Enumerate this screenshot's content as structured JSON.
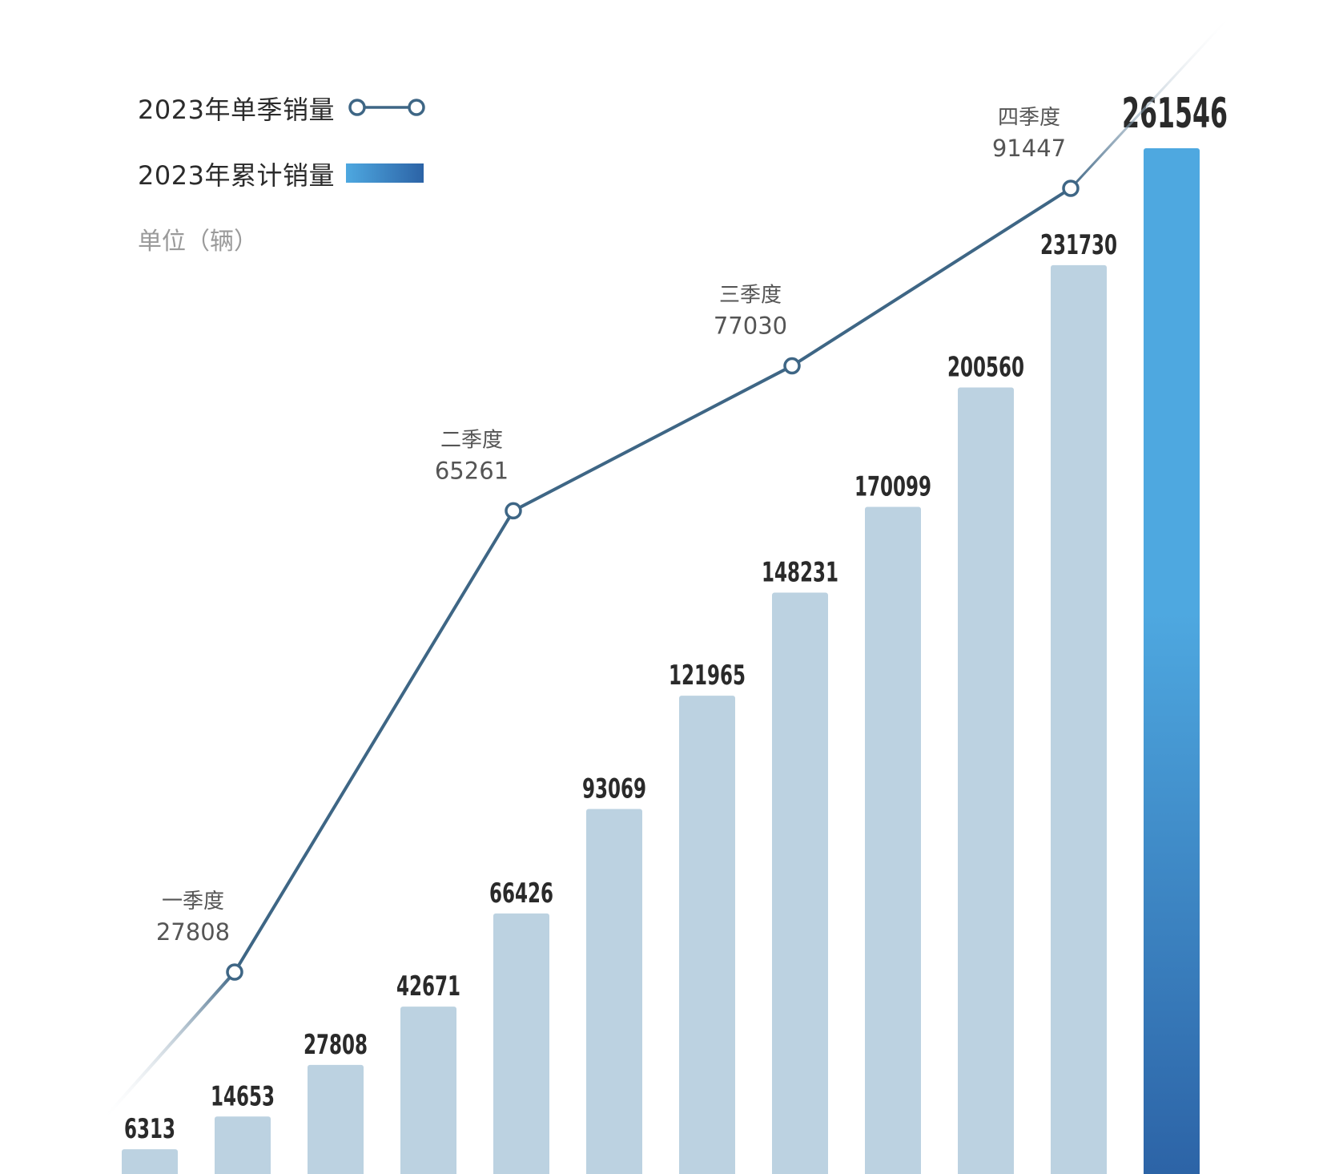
{
  "legend": {
    "quarterly_label": "2023年单季销量",
    "cumulative_label": "2023年累计销量",
    "unit": "单位（辆）"
  },
  "colors": {
    "bar": "#bcd2e1",
    "bar_highlight_top": "#4ea8e0",
    "bar_highlight_bottom": "#2c63a6",
    "line": "#3e6685",
    "value_label": "#2a2a2a",
    "quarter_label": "#555555"
  },
  "chart_data": {
    "type": "bar",
    "series": [
      {
        "name": "2023年累计销量",
        "type": "bar",
        "values": [
          6313,
          14653,
          27808,
          42671,
          66426,
          93069,
          121965,
          148231,
          170099,
          200560,
          231730,
          261546
        ]
      },
      {
        "name": "2023年单季销量",
        "type": "line",
        "points": [
          {
            "quarter": "一季度",
            "value": 27808
          },
          {
            "quarter": "二季度",
            "value": 65261
          },
          {
            "quarter": "三季度",
            "value": 77030
          },
          {
            "quarter": "四季度",
            "value": 91447
          }
        ]
      }
    ],
    "unit": "单位（辆）",
    "grid": false,
    "legend_position": "top-left"
  }
}
